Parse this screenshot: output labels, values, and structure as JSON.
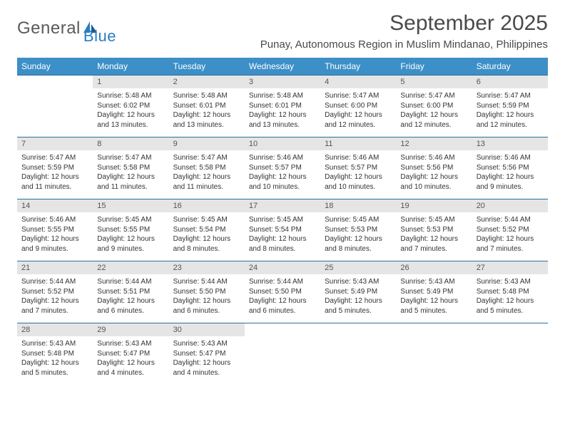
{
  "logo": {
    "text1": "General",
    "text2": "Blue"
  },
  "title": "September 2025",
  "subtitle": "Punay, Autonomous Region in Muslim Mindanao, Philippines",
  "colors": {
    "header_bg": "#3d8fc7",
    "header_text": "#ffffff",
    "daynum_bg": "#e5e5e5",
    "row_border": "#2b6ea0",
    "body_text": "#333333",
    "title_text": "#4a4a4a",
    "logo_gray": "#5a5a5a",
    "logo_blue": "#2a7ec2"
  },
  "fonts": {
    "title_size": 30,
    "subtitle_size": 15,
    "dayhead_size": 12,
    "daynum_size": 11,
    "cell_size": 10
  },
  "day_names": [
    "Sunday",
    "Monday",
    "Tuesday",
    "Wednesday",
    "Thursday",
    "Friday",
    "Saturday"
  ],
  "weeks": [
    [
      null,
      {
        "n": "1",
        "sr": "Sunrise: 5:48 AM",
        "ss": "Sunset: 6:02 PM",
        "dl": "Daylight: 12 hours and 13 minutes."
      },
      {
        "n": "2",
        "sr": "Sunrise: 5:48 AM",
        "ss": "Sunset: 6:01 PM",
        "dl": "Daylight: 12 hours and 13 minutes."
      },
      {
        "n": "3",
        "sr": "Sunrise: 5:48 AM",
        "ss": "Sunset: 6:01 PM",
        "dl": "Daylight: 12 hours and 13 minutes."
      },
      {
        "n": "4",
        "sr": "Sunrise: 5:47 AM",
        "ss": "Sunset: 6:00 PM",
        "dl": "Daylight: 12 hours and 12 minutes."
      },
      {
        "n": "5",
        "sr": "Sunrise: 5:47 AM",
        "ss": "Sunset: 6:00 PM",
        "dl": "Daylight: 12 hours and 12 minutes."
      },
      {
        "n": "6",
        "sr": "Sunrise: 5:47 AM",
        "ss": "Sunset: 5:59 PM",
        "dl": "Daylight: 12 hours and 12 minutes."
      }
    ],
    [
      {
        "n": "7",
        "sr": "Sunrise: 5:47 AM",
        "ss": "Sunset: 5:59 PM",
        "dl": "Daylight: 12 hours and 11 minutes."
      },
      {
        "n": "8",
        "sr": "Sunrise: 5:47 AM",
        "ss": "Sunset: 5:58 PM",
        "dl": "Daylight: 12 hours and 11 minutes."
      },
      {
        "n": "9",
        "sr": "Sunrise: 5:47 AM",
        "ss": "Sunset: 5:58 PM",
        "dl": "Daylight: 12 hours and 11 minutes."
      },
      {
        "n": "10",
        "sr": "Sunrise: 5:46 AM",
        "ss": "Sunset: 5:57 PM",
        "dl": "Daylight: 12 hours and 10 minutes."
      },
      {
        "n": "11",
        "sr": "Sunrise: 5:46 AM",
        "ss": "Sunset: 5:57 PM",
        "dl": "Daylight: 12 hours and 10 minutes."
      },
      {
        "n": "12",
        "sr": "Sunrise: 5:46 AM",
        "ss": "Sunset: 5:56 PM",
        "dl": "Daylight: 12 hours and 10 minutes."
      },
      {
        "n": "13",
        "sr": "Sunrise: 5:46 AM",
        "ss": "Sunset: 5:56 PM",
        "dl": "Daylight: 12 hours and 9 minutes."
      }
    ],
    [
      {
        "n": "14",
        "sr": "Sunrise: 5:46 AM",
        "ss": "Sunset: 5:55 PM",
        "dl": "Daylight: 12 hours and 9 minutes."
      },
      {
        "n": "15",
        "sr": "Sunrise: 5:45 AM",
        "ss": "Sunset: 5:55 PM",
        "dl": "Daylight: 12 hours and 9 minutes."
      },
      {
        "n": "16",
        "sr": "Sunrise: 5:45 AM",
        "ss": "Sunset: 5:54 PM",
        "dl": "Daylight: 12 hours and 8 minutes."
      },
      {
        "n": "17",
        "sr": "Sunrise: 5:45 AM",
        "ss": "Sunset: 5:54 PM",
        "dl": "Daylight: 12 hours and 8 minutes."
      },
      {
        "n": "18",
        "sr": "Sunrise: 5:45 AM",
        "ss": "Sunset: 5:53 PM",
        "dl": "Daylight: 12 hours and 8 minutes."
      },
      {
        "n": "19",
        "sr": "Sunrise: 5:45 AM",
        "ss": "Sunset: 5:53 PM",
        "dl": "Daylight: 12 hours and 7 minutes."
      },
      {
        "n": "20",
        "sr": "Sunrise: 5:44 AM",
        "ss": "Sunset: 5:52 PM",
        "dl": "Daylight: 12 hours and 7 minutes."
      }
    ],
    [
      {
        "n": "21",
        "sr": "Sunrise: 5:44 AM",
        "ss": "Sunset: 5:52 PM",
        "dl": "Daylight: 12 hours and 7 minutes."
      },
      {
        "n": "22",
        "sr": "Sunrise: 5:44 AM",
        "ss": "Sunset: 5:51 PM",
        "dl": "Daylight: 12 hours and 6 minutes."
      },
      {
        "n": "23",
        "sr": "Sunrise: 5:44 AM",
        "ss": "Sunset: 5:50 PM",
        "dl": "Daylight: 12 hours and 6 minutes."
      },
      {
        "n": "24",
        "sr": "Sunrise: 5:44 AM",
        "ss": "Sunset: 5:50 PM",
        "dl": "Daylight: 12 hours and 6 minutes."
      },
      {
        "n": "25",
        "sr": "Sunrise: 5:43 AM",
        "ss": "Sunset: 5:49 PM",
        "dl": "Daylight: 12 hours and 5 minutes."
      },
      {
        "n": "26",
        "sr": "Sunrise: 5:43 AM",
        "ss": "Sunset: 5:49 PM",
        "dl": "Daylight: 12 hours and 5 minutes."
      },
      {
        "n": "27",
        "sr": "Sunrise: 5:43 AM",
        "ss": "Sunset: 5:48 PM",
        "dl": "Daylight: 12 hours and 5 minutes."
      }
    ],
    [
      {
        "n": "28",
        "sr": "Sunrise: 5:43 AM",
        "ss": "Sunset: 5:48 PM",
        "dl": "Daylight: 12 hours and 5 minutes."
      },
      {
        "n": "29",
        "sr": "Sunrise: 5:43 AM",
        "ss": "Sunset: 5:47 PM",
        "dl": "Daylight: 12 hours and 4 minutes."
      },
      {
        "n": "30",
        "sr": "Sunrise: 5:43 AM",
        "ss": "Sunset: 5:47 PM",
        "dl": "Daylight: 12 hours and 4 minutes."
      },
      null,
      null,
      null,
      null
    ]
  ]
}
